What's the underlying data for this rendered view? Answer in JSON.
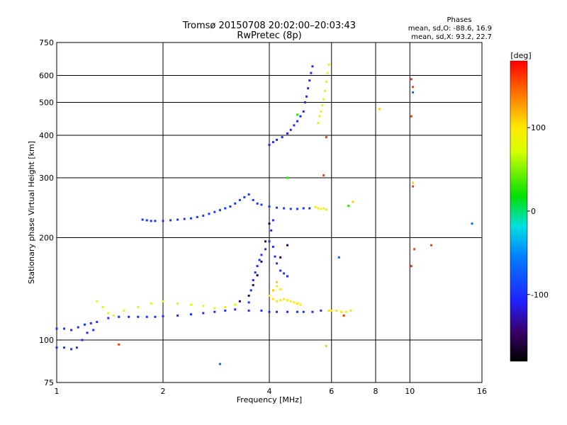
{
  "chart_data": {
    "type": "scatter",
    "title": "Tromsø 20150708 20:02:00–20:03:43",
    "subtitle": "RwPretec (8p)",
    "xlabel": "Frequency [MHz]",
    "ylabel": "Stationary phase Virtual Height [km]",
    "xscale": "log",
    "yscale": "log",
    "xlim": [
      1,
      16
    ],
    "ylim": [
      75,
      750
    ],
    "x_ticks": [
      1,
      2,
      4,
      6,
      8,
      10,
      16
    ],
    "y_ticks": [
      75,
      100,
      200,
      300,
      400,
      500,
      600,
      750
    ],
    "x_grid": [
      2,
      4,
      6,
      8,
      10
    ],
    "y_grid": [
      100,
      200,
      300,
      400,
      500,
      600
    ],
    "stats": {
      "heading": "Phases",
      "line_o": "mean, sd,O: -88.6, 16.9",
      "line_x": "mean, sd,X:  93.2, 22.7"
    },
    "colorbar": {
      "unit": "[deg]",
      "range": [
        -180,
        180
      ],
      "ticks": [
        100,
        0,
        -100
      ]
    },
    "traces": [
      {
        "phase": -100,
        "points": [
          [
            1.0,
            108
          ],
          [
            1.05,
            108
          ],
          [
            1.1,
            107
          ],
          [
            1.15,
            109
          ],
          [
            1.2,
            111
          ],
          [
            1.25,
            112
          ],
          [
            1.3,
            113
          ],
          [
            1.4,
            116
          ],
          [
            1.5,
            117
          ],
          [
            1.6,
            117
          ],
          [
            1.7,
            117
          ],
          [
            1.8,
            117
          ],
          [
            1.9,
            117
          ],
          [
            2.0,
            117.5
          ],
          [
            2.2,
            118
          ],
          [
            2.4,
            119
          ],
          [
            2.6,
            120
          ],
          [
            2.8,
            121
          ],
          [
            3.0,
            122
          ],
          [
            3.2,
            123
          ],
          [
            3.5,
            122
          ],
          [
            3.8,
            122
          ],
          [
            4.0,
            121
          ],
          [
            4.2,
            121
          ],
          [
            4.5,
            121
          ],
          [
            4.8,
            121
          ],
          [
            5.0,
            121
          ],
          [
            5.3,
            121
          ],
          [
            5.6,
            122
          ],
          [
            5.9,
            122
          ]
        ]
      },
      {
        "phase": -100,
        "points": [
          [
            1.0,
            95
          ],
          [
            1.05,
            95
          ],
          [
            1.1,
            94
          ],
          [
            1.14,
            95
          ],
          [
            1.18,
            100
          ],
          [
            1.22,
            105
          ],
          [
            1.27,
            107
          ]
        ]
      },
      {
        "phase": -95,
        "points": [
          [
            1.75,
            226
          ],
          [
            1.8,
            225
          ],
          [
            1.85,
            224
          ],
          [
            1.9,
            224
          ],
          [
            2.0,
            224
          ],
          [
            2.1,
            225
          ],
          [
            2.2,
            226
          ],
          [
            2.3,
            227
          ],
          [
            2.4,
            228
          ],
          [
            2.5,
            230
          ],
          [
            2.6,
            232
          ],
          [
            2.7,
            235
          ],
          [
            2.8,
            238
          ],
          [
            2.9,
            241
          ],
          [
            3.0,
            244
          ],
          [
            3.1,
            247
          ],
          [
            3.2,
            252
          ],
          [
            3.3,
            258
          ],
          [
            3.4,
            263
          ],
          [
            3.5,
            268
          ],
          [
            3.6,
            258
          ],
          [
            3.7,
            252
          ],
          [
            3.8,
            250
          ],
          [
            4.0,
            247
          ],
          [
            4.2,
            245
          ],
          [
            4.4,
            244
          ],
          [
            4.6,
            243
          ],
          [
            4.8,
            243
          ],
          [
            5.0,
            244
          ],
          [
            5.2,
            244
          ]
        ]
      },
      {
        "phase": -100,
        "points": [
          [
            3.5,
            129
          ],
          [
            3.55,
            140
          ],
          [
            3.6,
            150
          ],
          [
            3.65,
            158
          ],
          [
            3.7,
            165
          ],
          [
            3.75,
            172
          ],
          [
            3.8,
            178
          ],
          [
            3.9,
            185
          ],
          [
            4.0,
            195
          ],
          [
            4.05,
            210
          ],
          [
            4.1,
            225
          ],
          [
            4.1,
            188
          ],
          [
            4.15,
            176
          ],
          [
            4.2,
            168
          ],
          [
            4.3,
            160
          ],
          [
            4.4,
            157
          ],
          [
            4.5,
            154
          ]
        ]
      },
      {
        "phase": -105,
        "points": [
          [
            4.0,
            375
          ],
          [
            4.1,
            382
          ],
          [
            4.2,
            388
          ],
          [
            4.35,
            395
          ],
          [
            4.5,
            405
          ],
          [
            4.6,
            415
          ],
          [
            4.7,
            428
          ],
          [
            4.8,
            440
          ],
          [
            4.9,
            455
          ],
          [
            5.0,
            470
          ],
          [
            5.05,
            500
          ],
          [
            5.1,
            520
          ],
          [
            5.15,
            550
          ],
          [
            5.2,
            580
          ],
          [
            5.25,
            610
          ],
          [
            5.3,
            638
          ]
        ]
      },
      {
        "phase": 95,
        "points": [
          [
            5.5,
            435
          ],
          [
            5.55,
            455
          ],
          [
            5.6,
            470
          ],
          [
            5.65,
            490
          ],
          [
            5.7,
            510
          ],
          [
            5.75,
            540
          ],
          [
            5.8,
            575
          ],
          [
            5.85,
            610
          ],
          [
            5.9,
            645
          ]
        ]
      },
      {
        "phase": 100,
        "points": [
          [
            4.0,
            135
          ],
          [
            4.1,
            132
          ],
          [
            4.2,
            130
          ],
          [
            4.3,
            131
          ],
          [
            4.4,
            132
          ],
          [
            4.5,
            131
          ],
          [
            4.6,
            130
          ],
          [
            4.7,
            129
          ],
          [
            4.8,
            128
          ],
          [
            4.9,
            127
          ],
          [
            4.1,
            140
          ],
          [
            4.2,
            144
          ],
          [
            4.3,
            141
          ]
        ]
      },
      {
        "phase": 100,
        "points": [
          [
            5.9,
            122
          ],
          [
            6.0,
            122
          ],
          [
            6.2,
            122
          ],
          [
            6.4,
            121
          ],
          [
            6.6,
            121
          ],
          [
            6.8,
            122
          ]
        ]
      },
      {
        "phase": 95,
        "points": [
          [
            5.4,
            246
          ],
          [
            5.5,
            244
          ],
          [
            5.6,
            243
          ],
          [
            5.7,
            244
          ],
          [
            5.8,
            242
          ]
        ]
      },
      {
        "phase": 75,
        "points": [
          [
            1.3,
            130
          ],
          [
            1.35,
            125
          ],
          [
            1.4,
            120
          ],
          [
            1.45,
            118
          ],
          [
            1.55,
            122
          ],
          [
            1.7,
            125
          ],
          [
            1.85,
            128
          ],
          [
            2.0,
            130
          ],
          [
            2.2,
            128
          ],
          [
            2.4,
            127
          ],
          [
            2.6,
            126
          ],
          [
            2.8,
            124
          ],
          [
            3.0,
            125
          ],
          [
            3.2,
            127
          ]
        ]
      },
      {
        "phase": -150,
        "points": [
          [
            3.3,
            130
          ],
          [
            3.5,
            135
          ],
          [
            3.6,
            145
          ],
          [
            3.7,
            155
          ],
          [
            3.8,
            170
          ],
          [
            3.9,
            195
          ],
          [
            4.0,
            220
          ],
          [
            4.3,
            175
          ],
          [
            4.5,
            190
          ]
        ]
      },
      {
        "phase": 160,
        "points": [
          [
            10.1,
            585
          ],
          [
            10.2,
            555
          ],
          [
            10.1,
            455
          ],
          [
            10.2,
            283
          ],
          [
            10.3,
            185
          ],
          [
            11.5,
            190
          ],
          [
            10.1,
            165
          ],
          [
            6.5,
            118
          ],
          [
            5.8,
            395
          ],
          [
            5.7,
            305
          ],
          [
            1.5,
            97
          ]
        ]
      },
      {
        "phase": 110,
        "points": [
          [
            8.2,
            478
          ],
          [
            10.2,
            290
          ],
          [
            5.8,
            96
          ],
          [
            6.9,
            255
          ],
          [
            4.1,
            140
          ],
          [
            4.2,
            148
          ]
        ]
      },
      {
        "phase": -70,
        "points": [
          [
            10.2,
            535
          ],
          [
            15.0,
            220
          ],
          [
            6.3,
            175
          ],
          [
            2.9,
            85
          ]
        ]
      },
      {
        "phase": 30,
        "points": [
          [
            4.8,
            460
          ],
          [
            4.5,
            300
          ],
          [
            6.7,
            248
          ]
        ]
      }
    ]
  }
}
